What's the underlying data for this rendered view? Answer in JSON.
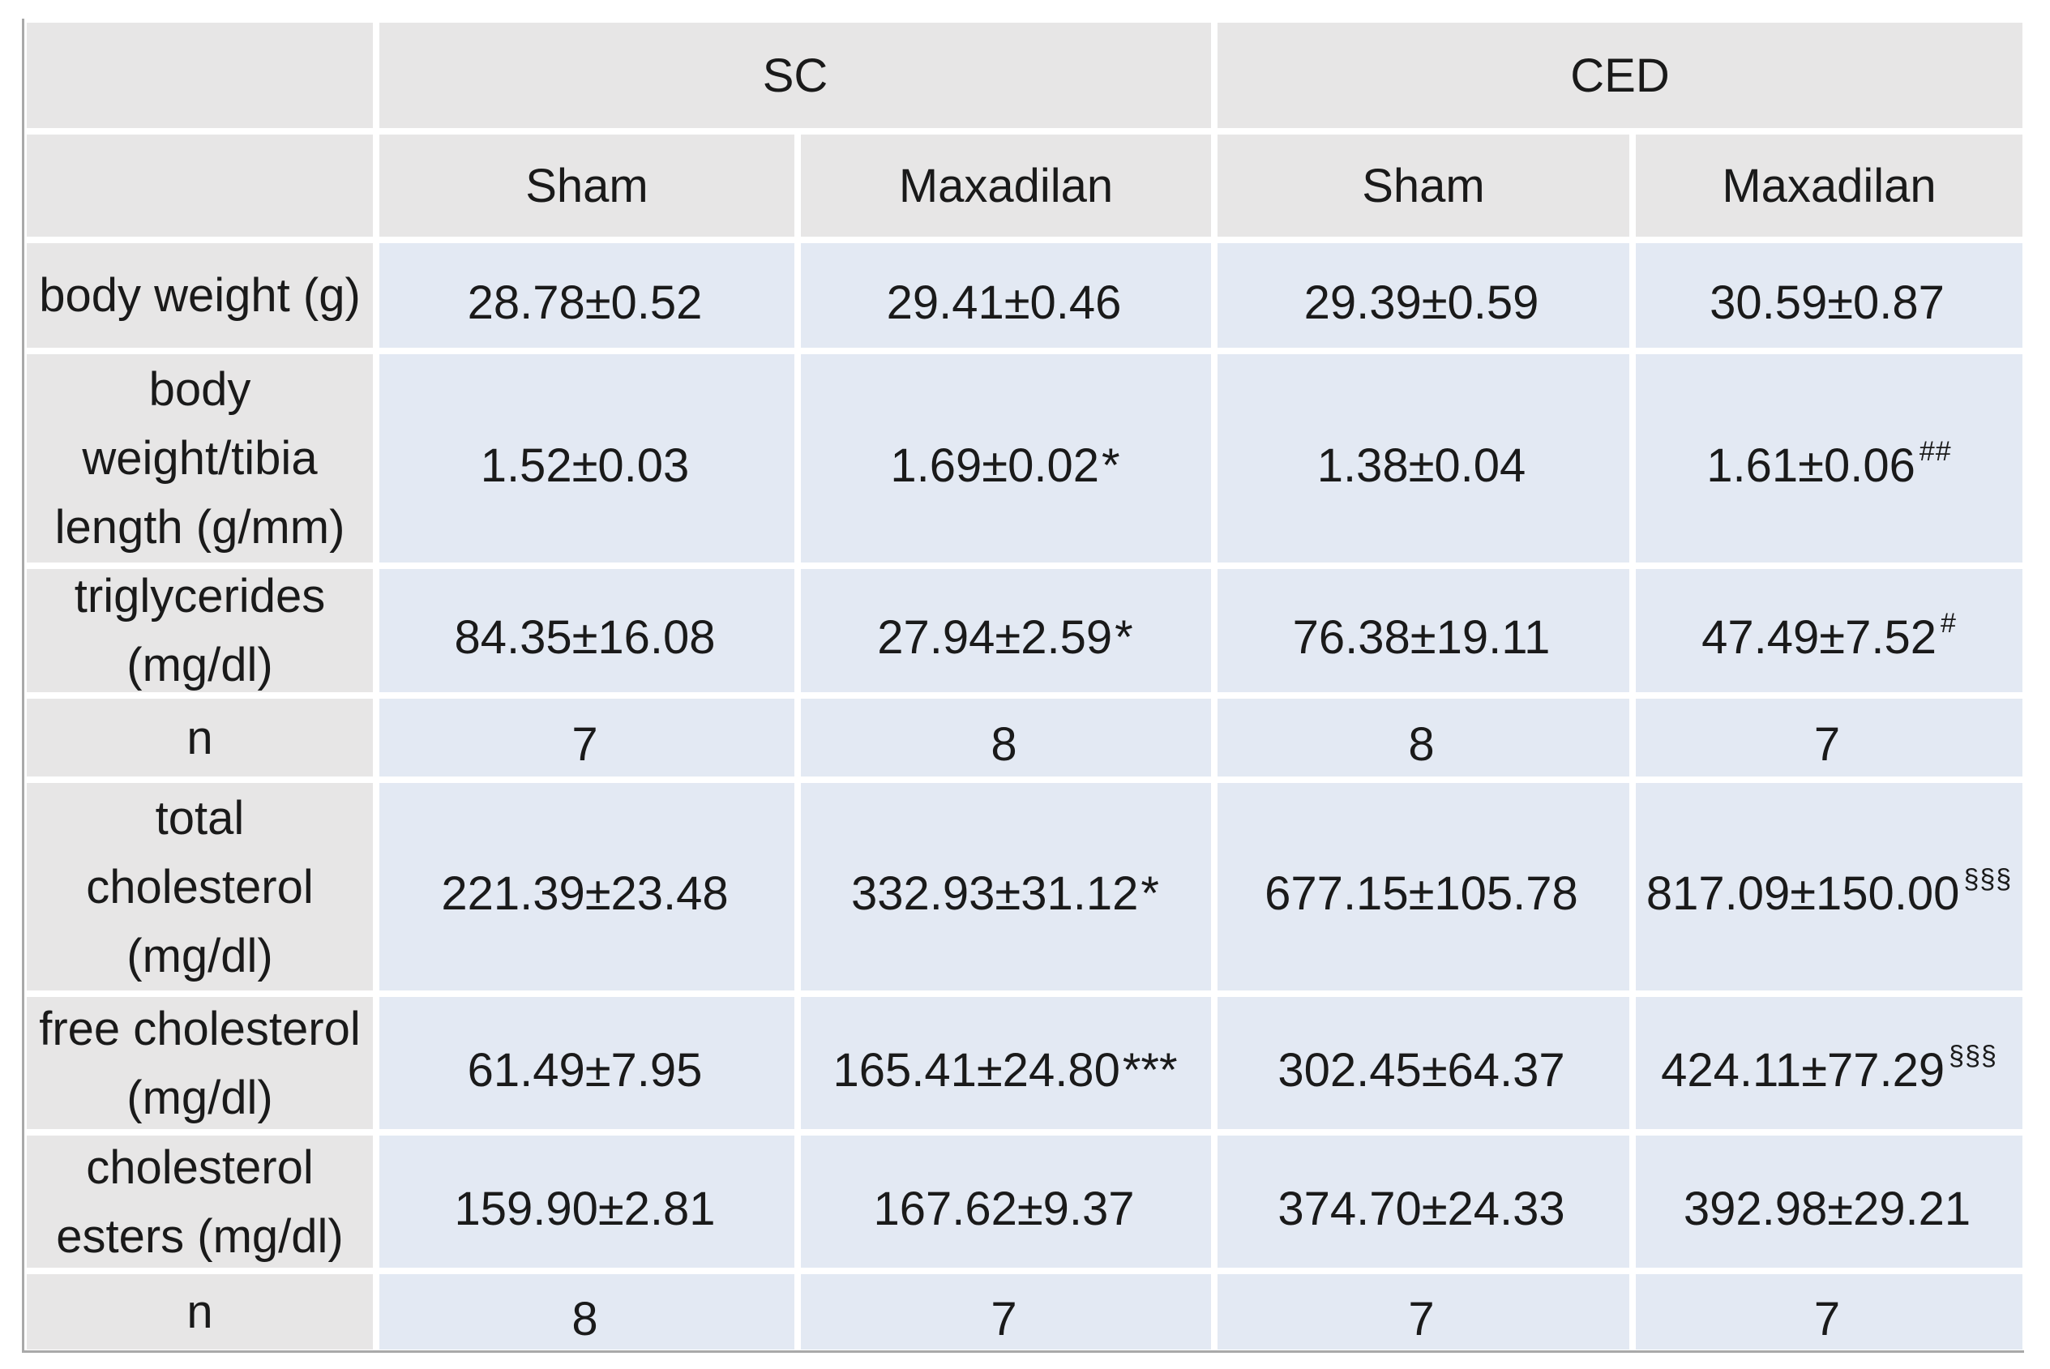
{
  "colors": {
    "page_bg": "#ffffff",
    "header_bg": "#e7e6e6",
    "data_bg": "#e3e9f3",
    "table_border": "#a9a9a9",
    "text": "#1a1a1a"
  },
  "table": {
    "groups": [
      {
        "label": "SC"
      },
      {
        "label": "CED"
      }
    ],
    "subheaders": [
      "Sham",
      "Maxadilan",
      "Sham",
      "Maxadilan"
    ],
    "rows": [
      {
        "header": "body weight (g)",
        "cells": [
          {
            "text": "28.78±0.52",
            "suffix": "",
            "sup": ""
          },
          {
            "text": "29.41±0.46",
            "suffix": "",
            "sup": ""
          },
          {
            "text": "29.39±0.59",
            "suffix": "",
            "sup": ""
          },
          {
            "text": "30.59±0.87",
            "suffix": "",
            "sup": ""
          }
        ]
      },
      {
        "header": "body\nweight/tibia\nlength (g/mm)",
        "cells": [
          {
            "text": "1.52±0.03",
            "suffix": "",
            "sup": ""
          },
          {
            "text": "1.69±0.02",
            "suffix": "*",
            "sup": ""
          },
          {
            "text": "1.38±0.04",
            "suffix": "",
            "sup": ""
          },
          {
            "text": "1.61±0.06",
            "suffix": "",
            "sup": "##"
          }
        ]
      },
      {
        "header": "triglycerides\n(mg/dl)",
        "cells": [
          {
            "text": "84.35±16.08",
            "suffix": "",
            "sup": ""
          },
          {
            "text": "27.94±2.59",
            "suffix": "*",
            "sup": ""
          },
          {
            "text": "76.38±19.11",
            "suffix": "",
            "sup": ""
          },
          {
            "text": "47.49±7.52",
            "suffix": "",
            "sup": "#"
          }
        ]
      },
      {
        "header": "n",
        "cells": [
          {
            "text": "7",
            "suffix": "",
            "sup": ""
          },
          {
            "text": "8",
            "suffix": "",
            "sup": ""
          },
          {
            "text": "8",
            "suffix": "",
            "sup": ""
          },
          {
            "text": "7",
            "suffix": "",
            "sup": ""
          }
        ]
      },
      {
        "header": "total\ncholesterol\n(mg/dl)",
        "cells": [
          {
            "text": "221.39±23.48",
            "suffix": "",
            "sup": ""
          },
          {
            "text": "332.93±31.12",
            "suffix": "*",
            "sup": ""
          },
          {
            "text": "677.15±105.78",
            "suffix": "",
            "sup": ""
          },
          {
            "text": "817.09±150.00",
            "suffix": "",
            "sup": "§§§"
          }
        ]
      },
      {
        "header": "free cholesterol\n(mg/dl)",
        "cells": [
          {
            "text": "61.49±7.95",
            "suffix": "",
            "sup": ""
          },
          {
            "text": "165.41±24.80",
            "suffix": "***",
            "sup": ""
          },
          {
            "text": "302.45±64.37",
            "suffix": "",
            "sup": ""
          },
          {
            "text": "424.11±77.29",
            "suffix": "",
            "sup": "§§§"
          }
        ]
      },
      {
        "header": "cholesterol\nesters (mg/dl)",
        "cells": [
          {
            "text": "159.90±2.81",
            "suffix": "",
            "sup": ""
          },
          {
            "text": "167.62±9.37",
            "suffix": "",
            "sup": ""
          },
          {
            "text": "374.70±24.33",
            "suffix": "",
            "sup": ""
          },
          {
            "text": "392.98±29.21",
            "suffix": "",
            "sup": ""
          }
        ]
      },
      {
        "header": "n",
        "cells": [
          {
            "text": "8",
            "suffix": "",
            "sup": ""
          },
          {
            "text": "7",
            "suffix": "",
            "sup": ""
          },
          {
            "text": "7",
            "suffix": "",
            "sup": ""
          },
          {
            "text": "7",
            "suffix": "",
            "sup": ""
          }
        ]
      }
    ]
  }
}
